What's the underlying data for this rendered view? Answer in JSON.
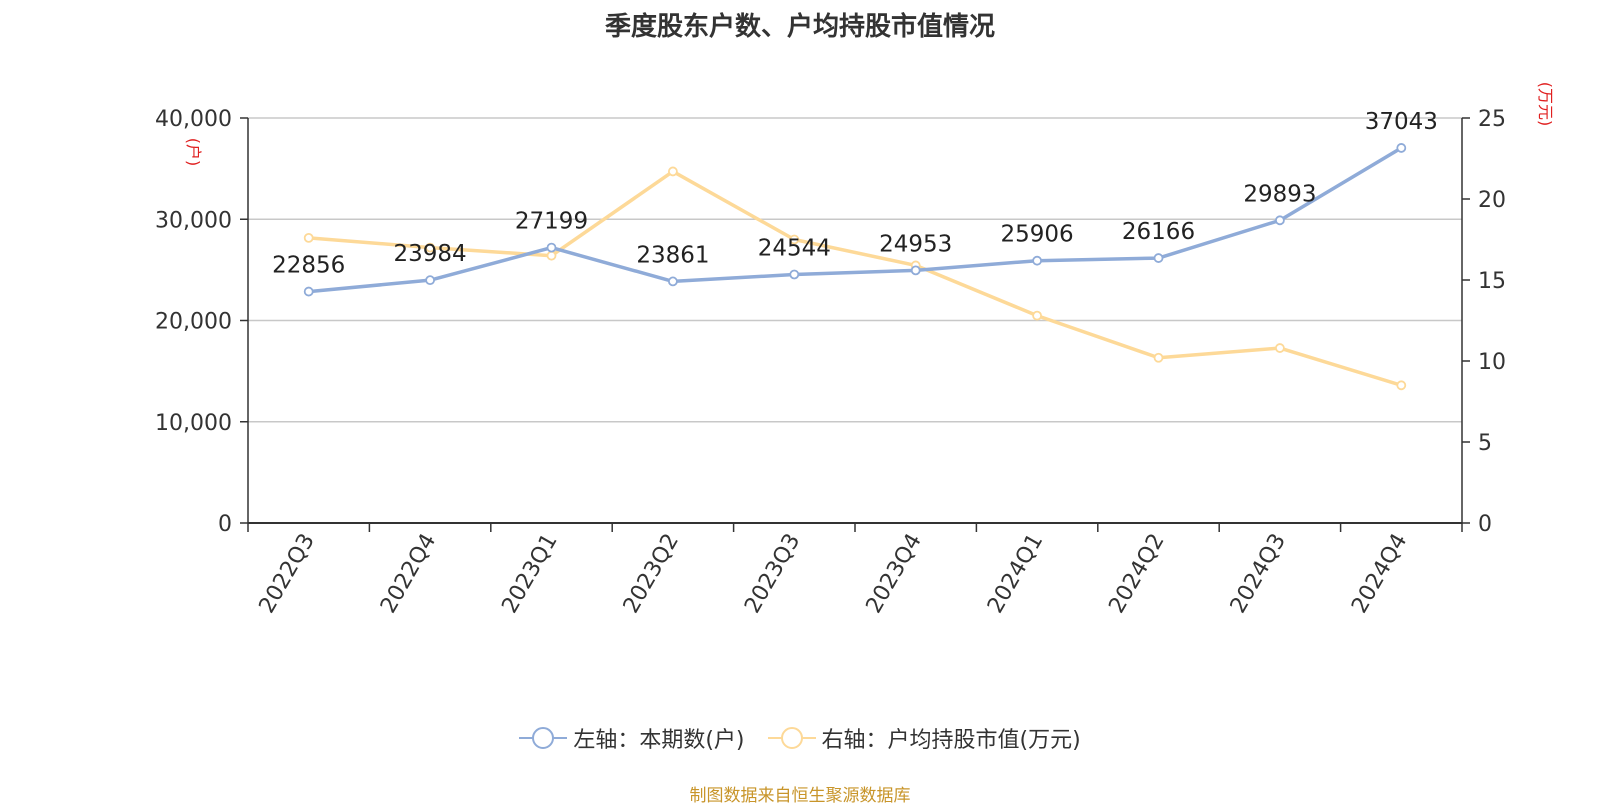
{
  "source_text": "制图数据来自恒生聚源数据库",
  "colors": {
    "series1": "#8fabd8",
    "series2": "#fdd998",
    "grid": "#c8c8c8",
    "axis": "#333333",
    "unit": "#e02020",
    "source": "#c8952a"
  },
  "chart_data": {
    "type": "line",
    "title": "季度股东户数、户均持股市值情况",
    "categories": [
      "2022Q3",
      "2022Q4",
      "2023Q1",
      "2023Q2",
      "2023Q3",
      "2023Q4",
      "2024Q1",
      "2024Q2",
      "2024Q3",
      "2024Q4"
    ],
    "left_axis": {
      "unit": "(户)",
      "ylim": [
        0,
        40000
      ],
      "ticks": [
        0,
        10000,
        20000,
        30000,
        40000
      ],
      "tick_labels": [
        "0",
        "10,000",
        "20,000",
        "30,000",
        "40,000"
      ]
    },
    "right_axis": {
      "unit": "(万元)",
      "ylim": [
        0,
        25
      ],
      "ticks": [
        0,
        5,
        10,
        15,
        20,
        25
      ],
      "tick_labels": [
        "0",
        "5",
        "10",
        "15",
        "20",
        "25"
      ]
    },
    "series": [
      {
        "name": "左轴：本期数(户)",
        "axis": "left",
        "values": [
          22856,
          23984,
          27199,
          23861,
          24544,
          24953,
          25906,
          26166,
          29893,
          37043
        ],
        "data_labels": [
          "22856",
          "23984",
          "27199",
          "23861",
          "24544",
          "24953",
          "25906",
          "26166",
          "29893",
          "37043"
        ]
      },
      {
        "name": "右轴：户均持股市值(万元)",
        "axis": "right",
        "values": [
          17.6,
          17.0,
          16.5,
          21.7,
          17.5,
          15.9,
          12.8,
          10.2,
          10.8,
          8.5
        ]
      }
    ],
    "grid": true,
    "legend_position": "bottom"
  }
}
